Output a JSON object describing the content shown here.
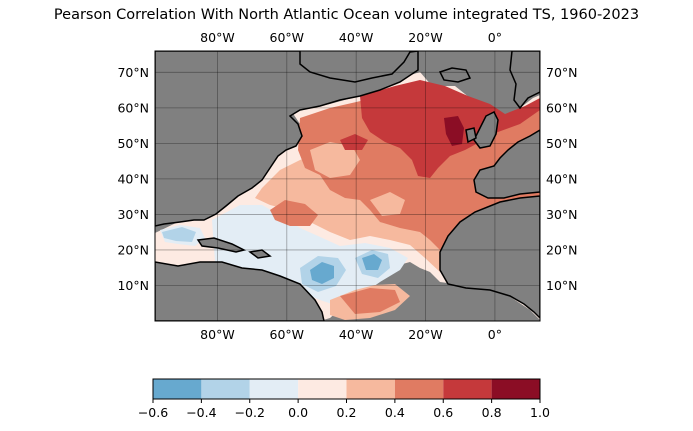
{
  "title": "Pearson Correlation With North Atlantic Ocean volume integrated TS, 1960-2023",
  "map": {
    "lon_range": [
      -98,
      13
    ],
    "lat_range": [
      0,
      76
    ],
    "lon_ticks": [
      {
        "value": -80,
        "label": "80°W"
      },
      {
        "value": -60,
        "label": "60°W"
      },
      {
        "value": -40,
        "label": "40°W"
      },
      {
        "value": -20,
        "label": "20°W"
      },
      {
        "value": 0,
        "label": "0°"
      }
    ],
    "lat_ticks": [
      {
        "value": 70,
        "label": "70°N"
      },
      {
        "value": 60,
        "label": "60°N"
      },
      {
        "value": 50,
        "label": "50°N"
      },
      {
        "value": 40,
        "label": "40°N"
      },
      {
        "value": 30,
        "label": "30°N"
      },
      {
        "value": 20,
        "label": "20°N"
      },
      {
        "value": 10,
        "label": "10°N"
      }
    ],
    "gridlines": true,
    "land_color": "#808080"
  },
  "colorbar": {
    "boundaries": [
      -0.6,
      -0.4,
      -0.2,
      0.0,
      0.2,
      0.4,
      0.6,
      0.8,
      1.0
    ],
    "tick_labels": [
      "−0.6",
      "−0.4",
      "−0.2",
      "0.0",
      "0.2",
      "0.4",
      "0.6",
      "0.8",
      "1.0"
    ],
    "colors": [
      "#67a9cf",
      "#b2d3e8",
      "#e3edf5",
      "#fdeae2",
      "#f6b99e",
      "#e07b62",
      "#c5393b",
      "#8b0d25"
    ]
  }
}
